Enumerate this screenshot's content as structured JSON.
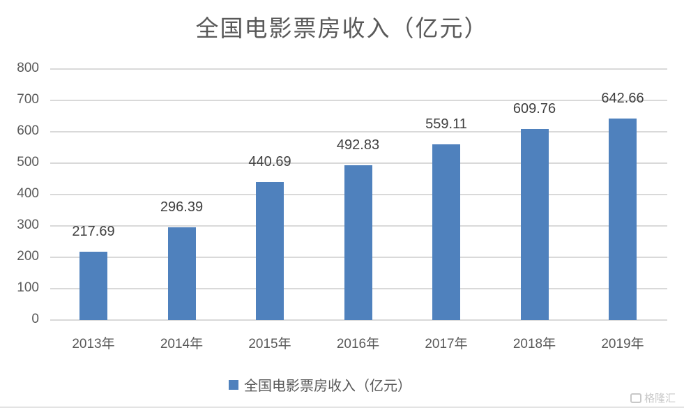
{
  "chart_data": {
    "type": "bar",
    "title": "全国电影票房收入（亿元）",
    "categories": [
      "2013年",
      "2014年",
      "2015年",
      "2016年",
      "2017年",
      "2018年",
      "2019年"
    ],
    "series": [
      {
        "name": "全国电影票房收入（亿元）",
        "values": [
          217.69,
          296.39,
          440.69,
          492.83,
          559.11,
          609.76,
          642.66
        ],
        "color": "#4f81bd"
      }
    ],
    "data_labels": [
      "217.69",
      "296.39",
      "440.69",
      "492.83",
      "559.11",
      "609.76",
      "642.66"
    ],
    "xlabel": "",
    "ylabel": "",
    "ylim": [
      0,
      800
    ],
    "yticks": [
      "0",
      "100",
      "200",
      "300",
      "400",
      "500",
      "600",
      "700",
      "800"
    ],
    "grid": true,
    "legend_position": "bottom"
  },
  "legend": {
    "label": "全国电影票房收入（亿元）"
  },
  "watermark": {
    "text": "格隆汇"
  }
}
